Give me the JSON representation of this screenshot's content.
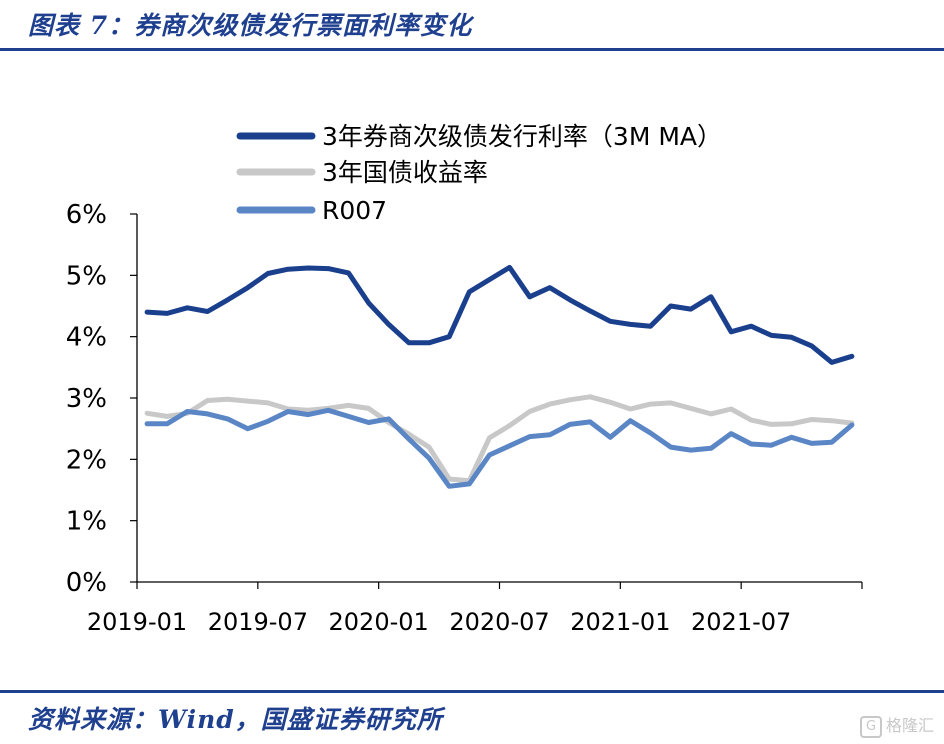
{
  "title": "图表 7：券商次级债发行票面利率变化",
  "source": "资料来源：Wind，国盛证券研究所",
  "watermark": {
    "icon": "gelonghui-logo-icon",
    "text": "格隆汇"
  },
  "chart_data": {
    "type": "line",
    "x": [
      "2019-01",
      "2019-02",
      "2019-03",
      "2019-04",
      "2019-05",
      "2019-06",
      "2019-07",
      "2019-08",
      "2019-09",
      "2019-10",
      "2019-11",
      "2019-12",
      "2020-01",
      "2020-02",
      "2020-03",
      "2020-04",
      "2020-05",
      "2020-06",
      "2020-07",
      "2020-08",
      "2020-09",
      "2020-10",
      "2020-11",
      "2020-12",
      "2021-01",
      "2021-02",
      "2021-03",
      "2021-04",
      "2021-05",
      "2021-06",
      "2021-07",
      "2021-08",
      "2021-09",
      "2021-10",
      "2021-11",
      "2021-12"
    ],
    "x_ticks": [
      "2019-01",
      "2019-07",
      "2020-01",
      "2020-07",
      "2021-01",
      "2021-07"
    ],
    "y_ticks": [
      "0%",
      "1%",
      "2%",
      "3%",
      "4%",
      "5%",
      "6%"
    ],
    "ylim": [
      0,
      6
    ],
    "y_unit": "%",
    "legend_position": "top-left",
    "series": [
      {
        "name": "3年券商次级债发行利率（3M MA）",
        "color": "#1a3f8c",
        "values": [
          4.4,
          4.38,
          4.47,
          4.41,
          4.6,
          4.8,
          5.03,
          5.1,
          5.12,
          5.11,
          5.04,
          4.55,
          4.2,
          3.9,
          3.9,
          4.0,
          4.73,
          4.93,
          5.13,
          4.65,
          4.8,
          4.6,
          4.42,
          4.25,
          4.2,
          4.17,
          4.5,
          4.45,
          4.65,
          4.08,
          4.17,
          4.02,
          3.99,
          3.85,
          3.58,
          3.68
        ]
      },
      {
        "name": "3年国债收益率",
        "color": "#c8c8c8",
        "values": [
          2.75,
          2.7,
          2.75,
          2.96,
          2.98,
          2.95,
          2.92,
          2.82,
          2.8,
          2.83,
          2.88,
          2.83,
          2.6,
          2.41,
          2.2,
          1.68,
          1.65,
          2.35,
          2.55,
          2.78,
          2.9,
          2.97,
          3.02,
          2.93,
          2.82,
          2.9,
          2.92,
          2.83,
          2.74,
          2.82,
          2.64,
          2.57,
          2.58,
          2.65,
          2.63,
          2.59
        ]
      },
      {
        "name": "R007",
        "color": "#5b86c5",
        "values": [
          2.58,
          2.58,
          2.78,
          2.74,
          2.66,
          2.5,
          2.62,
          2.78,
          2.73,
          2.8,
          2.7,
          2.6,
          2.66,
          2.33,
          2.02,
          1.56,
          1.6,
          2.07,
          2.22,
          2.37,
          2.4,
          2.57,
          2.61,
          2.36,
          2.63,
          2.43,
          2.2,
          2.15,
          2.18,
          2.42,
          2.25,
          2.23,
          2.36,
          2.26,
          2.28,
          2.56
        ]
      }
    ]
  }
}
